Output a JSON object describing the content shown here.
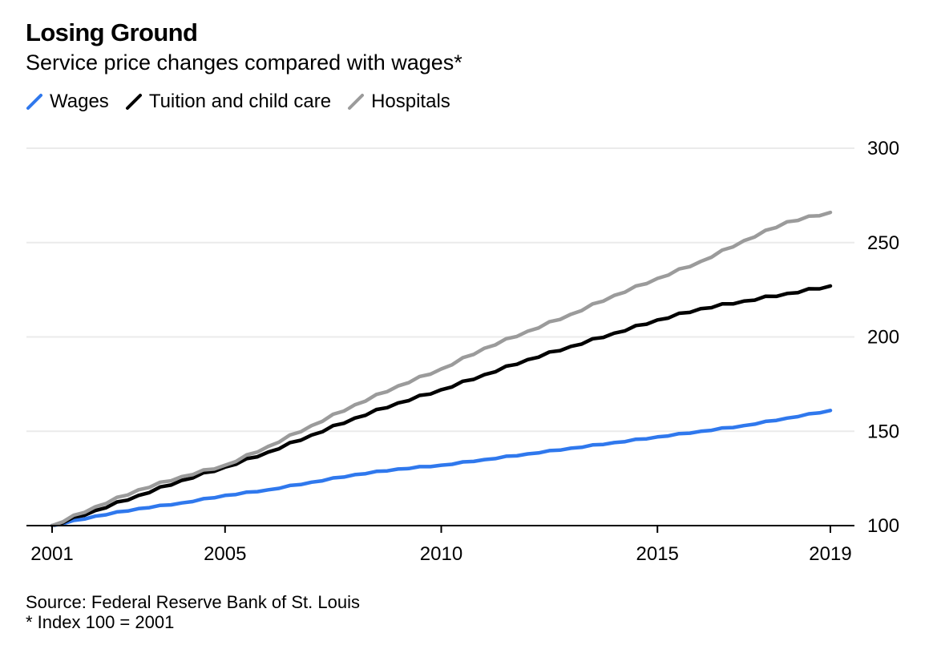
{
  "chart_data": {
    "type": "line",
    "title": "Losing Ground",
    "subtitle": "Service price changes compared with wages*",
    "source": "Source: Federal Reserve Bank of St. Louis",
    "note": "* Index 100 = 2001",
    "xlabel": "",
    "ylabel": "",
    "xlim": [
      2001,
      2019
    ],
    "ylim": [
      100,
      300
    ],
    "x_ticks": [
      2001,
      2005,
      2010,
      2015,
      2019
    ],
    "x_tick_labels": [
      "2001",
      "2005",
      "2010",
      "2015",
      "2019"
    ],
    "y_ticks": [
      100,
      150,
      200,
      250,
      300
    ],
    "y_tick_labels": [
      "100",
      "150",
      "200",
      "250",
      "300"
    ],
    "y_axis_position": "right",
    "grid": true,
    "legend_position": "top-left",
    "x": [
      2001,
      2002,
      2003,
      2004,
      2005,
      2006,
      2007,
      2008,
      2009,
      2010,
      2011,
      2012,
      2013,
      2014,
      2015,
      2016,
      2017,
      2018,
      2019
    ],
    "series": [
      {
        "name": "Wages",
        "color": "#2f78ed",
        "values": [
          100,
          105,
          109,
          112,
          116,
          119,
          123,
          127,
          130,
          132,
          135,
          138,
          141,
          144,
          147,
          150,
          153,
          157,
          161
        ]
      },
      {
        "name": "Tuition and child care",
        "color": "#000000",
        "values": [
          100,
          108,
          116,
          124,
          131,
          139,
          148,
          157,
          165,
          172,
          180,
          188,
          195,
          202,
          209,
          215,
          219,
          223,
          227
        ]
      },
      {
        "name": "Hospitals",
        "color": "#9b9b9b",
        "values": [
          100,
          110,
          119,
          126,
          132,
          142,
          153,
          164,
          174,
          183,
          194,
          203,
          212,
          222,
          231,
          240,
          251,
          261,
          266
        ]
      }
    ]
  }
}
